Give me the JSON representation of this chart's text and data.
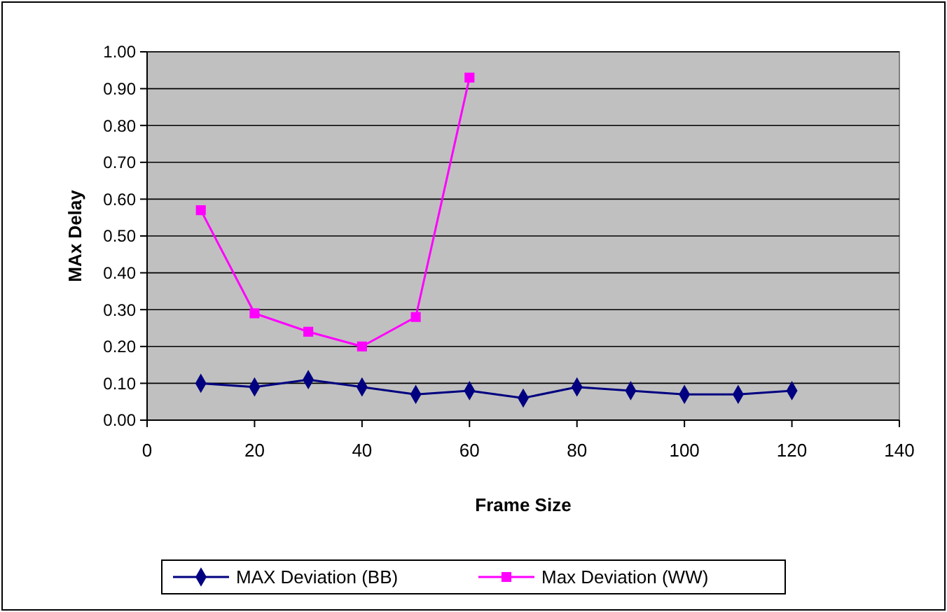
{
  "chart_data": {
    "type": "line",
    "xlabel": "Frame Size",
    "ylabel": "MAx Delay",
    "xlim": [
      0,
      140
    ],
    "xticks": [
      0,
      20,
      40,
      60,
      80,
      100,
      120,
      140
    ],
    "ylim": [
      0,
      1
    ],
    "yticks": [
      {
        "value": 0,
        "label": "0.00"
      },
      {
        "value": 0.1,
        "label": "0.10"
      },
      {
        "value": 0.2,
        "label": "0.20"
      },
      {
        "value": 0.3,
        "label": "0.30"
      },
      {
        "value": 0.4,
        "label": "0.40"
      },
      {
        "value": 0.5,
        "label": "0.50"
      },
      {
        "value": 0.6,
        "label": "0.60"
      },
      {
        "value": 0.7,
        "label": "0.70"
      },
      {
        "value": 0.8,
        "label": "0.80"
      },
      {
        "value": 0.9,
        "label": "0.90"
      },
      {
        "value": 1,
        "label": "1.00"
      }
    ],
    "grid": "y",
    "legend": "bottom",
    "series": [
      {
        "name": "MAX Deviation (BB)",
        "color": "#000080",
        "marker": "diamond",
        "x": [
          10,
          20,
          30,
          40,
          50,
          60,
          70,
          80,
          90,
          100,
          110,
          120
        ],
        "values": [
          0.1,
          0.09,
          0.11,
          0.09,
          0.07,
          0.08,
          0.06,
          0.09,
          0.08,
          0.07,
          0.07,
          0.08
        ]
      },
      {
        "name": "Max Deviation (WW)",
        "color": "#ff00ff",
        "marker": "square",
        "x": [
          10,
          20,
          30,
          40,
          50,
          60
        ],
        "values": [
          0.57,
          0.29,
          0.24,
          0.2,
          0.28,
          0.93
        ]
      }
    ]
  }
}
